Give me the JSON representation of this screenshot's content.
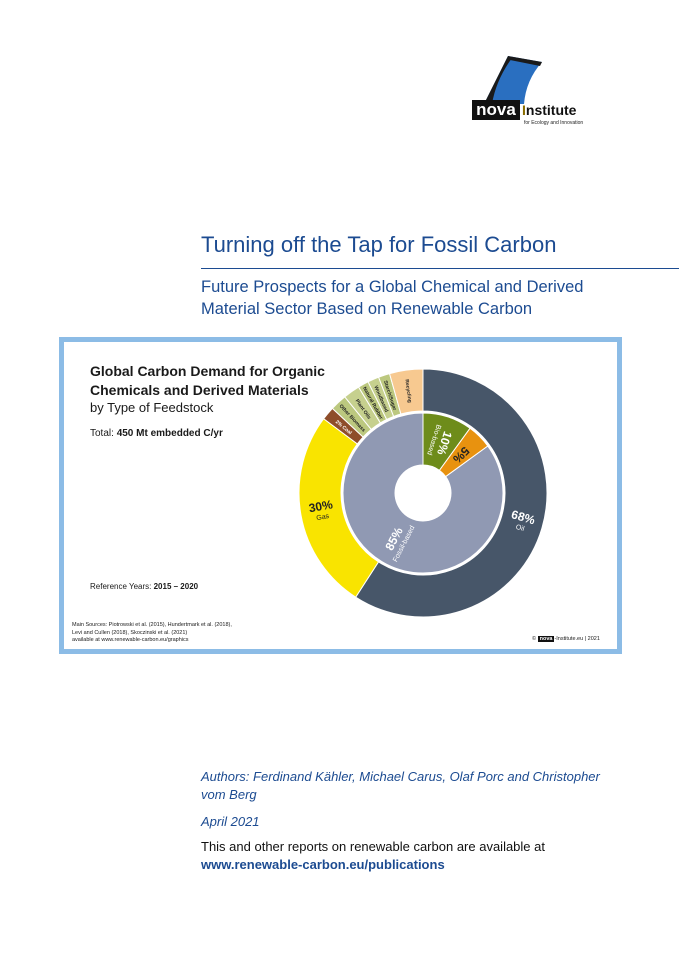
{
  "logo": {
    "word": "nova",
    "name_first": "I",
    "name_rest": "nstitute",
    "tagline": "for Ecology and Innovation"
  },
  "title": "Turning off the Tap for Fossil Carbon",
  "subtitle_line1": "Future Prospects for a Global Chemical and Derived",
  "subtitle_line2": "Material Sector Based on Renewable Carbon",
  "chart_card": {
    "title_line1": "Global Carbon Demand for Organic",
    "title_line2": "Chemicals and Derived Materials",
    "subtitle": "by Type of Feedstock",
    "total_label": "Total: ",
    "total_value": "450 Mt embedded C/yr",
    "ref_label": "Reference Years: ",
    "ref_value": "2015 – 2020",
    "sources_line1": "Main Sources: Piotrowski et al. (2015), Hundertmark et al. (2018),",
    "sources_line2": "Levi and Cullen (2018), Skoczinski et al. (2021)",
    "sources_line3": "available at www.renewable-carbon.eu/graphics",
    "copyright_prefix": "© ",
    "copyright_brand": "nova",
    "copyright_suffix": "-Institute.eu | 2021"
  },
  "chart_data": {
    "type": "pie",
    "inner_ring": [
      {
        "label": "85%",
        "sub": "Fossil-based",
        "value": 85,
        "color": "#9099b3"
      },
      {
        "label": "10%",
        "sub": "Bio-based",
        "value": 10,
        "color": "#6e8c1a"
      },
      {
        "label": "5%",
        "sub": "",
        "value": 5,
        "color": "#e8920f"
      }
    ],
    "outer_ring": [
      {
        "label": "68%",
        "sub": "Oil",
        "value": 68,
        "color": "#475669"
      },
      {
        "label": "30%",
        "sub": "Gas",
        "value": 30,
        "color": "#f9e400"
      },
      {
        "label": "2% Coal",
        "sub": "",
        "value": 2,
        "color": "#8e4d2a"
      },
      {
        "label": "Other Biomass",
        "sub": "",
        "value": 2.5,
        "color": "#bcc87f"
      },
      {
        "label": "Plant Oils",
        "sub": "",
        "value": 2.5,
        "color": "#c6d08e"
      },
      {
        "label": "Natural Rubber",
        "sub": "",
        "value": 1.6,
        "color": "#bcc87f"
      },
      {
        "label": "Woodbased",
        "sub": "",
        "value": 1.7,
        "color": "#c6d08e"
      },
      {
        "label": "Starch/Sugar",
        "sub": "",
        "value": 1.7,
        "color": "#bcc87f"
      },
      {
        "label": "Recycling",
        "sub": "",
        "value": 5,
        "color": "#f7c990"
      }
    ]
  },
  "authors": "Authors: Ferdinand Kähler, Michael Carus, Olaf Porc and Christopher vom Berg",
  "date": "April 2021",
  "info": "This and other reports on renewable carbon are available at",
  "link": "www.renewable-carbon.eu/publications"
}
